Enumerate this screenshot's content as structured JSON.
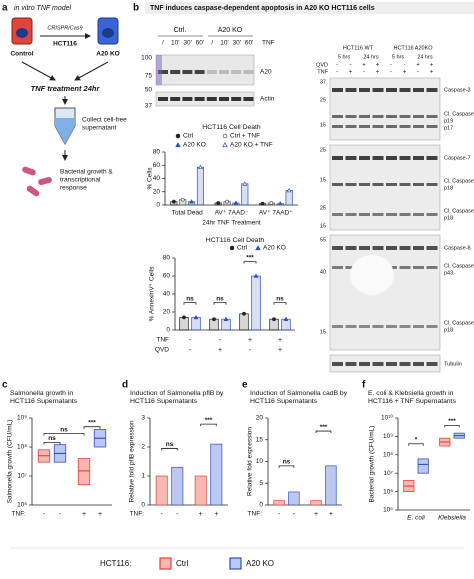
{
  "panel_a": {
    "label": "a",
    "title": "in vitro TNF model",
    "method": "CRISPR/Cas9",
    "cell_line": "HCT116",
    "control": "Control",
    "knockout": "A20 KO",
    "treatment": "TNF treatment 24hr",
    "step_1": [
      "Collect cell-free",
      "supernatant"
    ],
    "step_2": [
      "Bacterial growth &",
      "transcriptional",
      "response"
    ]
  },
  "panel_b": {
    "label": "b",
    "title": "TNF induces caspase-dependent apoptosis in A20 KO HCT116 cells",
    "blot_1": {
      "groups": [
        "Ctrl.",
        "A20 KO"
      ],
      "lanes": [
        "/",
        "10'",
        "30'",
        "60'",
        "/",
        "10'",
        "30'",
        "60'"
      ],
      "treatment": "TNF",
      "bands": [
        "A20",
        "Actin"
      ],
      "markers": [
        "100",
        "75",
        "50",
        "37"
      ]
    },
    "blot_2": {
      "groups": [
        "HCT116 WT",
        "HCT116 A20KO"
      ],
      "times": [
        "5 hrs",
        "24 hrs",
        "5 hrs",
        "24 hrs"
      ],
      "rows": [
        {
          "name": "QVD",
          "values": [
            "-",
            "-",
            "+",
            "+",
            "-",
            "-",
            "+",
            "+"
          ]
        },
        {
          "name": "TNF",
          "values": [
            "-",
            "+",
            "-",
            "+",
            "-",
            "+",
            "-",
            "+"
          ]
        }
      ],
      "bands": [
        [
          "Caspase-3"
        ],
        [
          "Cl. Caspase-3",
          "p19",
          "p17"
        ],
        [
          "Caspase-7"
        ],
        [
          "Cl. Caspase-7",
          "p18"
        ],
        [
          "Cl. Caspase-7",
          "p18"
        ],
        [
          "Caspase-8"
        ],
        [
          "Cl. Caspase-8",
          "p43"
        ],
        [
          "Cl. Caspase-8",
          "p18"
        ],
        [
          "Tubulin"
        ]
      ],
      "markers": [
        "37",
        "25",
        "15",
        "25",
        "15",
        "25",
        "15",
        "55",
        "40",
        "15"
      ]
    }
  },
  "charts": [
    {
      "type": "bar",
      "title": [
        "HCT116 Cell Death"
      ],
      "ylabel": "% Cells",
      "xlabel": "24hr TNF Treatment",
      "categories": [
        "Total Dead",
        "AV⁺ 7AAD⁻",
        "AV⁺ 7AAD⁺"
      ],
      "ylim": [
        0,
        80
      ],
      "yticks": [
        0,
        20,
        40,
        60,
        80
      ],
      "series": [
        {
          "name": "Ctrl",
          "color": "#222222",
          "marker": "circle",
          "open": false,
          "values": [
            5,
            3,
            2
          ]
        },
        {
          "name": "Ctrl + TNF",
          "color": "#555555",
          "marker": "circle",
          "open": true,
          "values": [
            8,
            5,
            3
          ]
        },
        {
          "name": "A20 KO",
          "color": "#2f4fbf",
          "marker": "triangle",
          "open": false,
          "values": [
            5,
            3,
            2
          ]
        },
        {
          "name": "A20 KO + TNF",
          "color": "#2f4fbf",
          "marker": "triangle",
          "open": true,
          "values": [
            57,
            32,
            22
          ]
        }
      ]
    },
    {
      "type": "bar",
      "title": [
        "HCT116 Cell Death"
      ],
      "ylabel": "% AnnexinV⁺ Cells",
      "rows": [
        {
          "name": "TNF",
          "values": [
            "-",
            "-",
            "+",
            "+"
          ]
        },
        {
          "name": "QVD",
          "values": [
            "-",
            "+",
            "-",
            "+"
          ]
        }
      ],
      "ylim": [
        0,
        80
      ],
      "yticks": [
        0,
        20,
        40,
        60,
        80
      ],
      "series": [
        {
          "name": "Ctrl",
          "color": "#222222",
          "marker": "circle",
          "open": false,
          "values": [
            14,
            12,
            18,
            12
          ]
        },
        {
          "name": "A20 KO",
          "color": "#2f4fbf",
          "marker": "triangle",
          "open": false,
          "values": [
            14,
            12,
            60,
            12
          ]
        }
      ],
      "annotations": [
        "ns",
        "ns",
        "***",
        "ns"
      ]
    },
    {
      "type": "box",
      "title": [
        "Salmonella growth in",
        "HCT116 Supernatants"
      ],
      "ylabel": "Salmonella growth (CFU/mL)",
      "log": true,
      "row_label": "TNF:",
      "categories": [
        "-",
        "+"
      ],
      "ylim": [
        1000000,
        1000000000
      ],
      "yticks": [
        {
          "value": 1000000,
          "label": "10⁶"
        },
        {
          "value": 10000000,
          "label": "10⁷"
        },
        {
          "value": 100000000,
          "label": "10⁸"
        },
        {
          "value": 1000000000,
          "label": "10⁹"
        }
      ],
      "series": [
        {
          "color": "#e0443a",
          "fill": "#f6b8b0",
          "q1": [
            30000000,
            5000000
          ],
          "median": [
            50000000,
            15000000
          ],
          "q3": [
            80000000,
            40000000
          ]
        },
        {
          "color": "#2f4fbf",
          "fill": "#bcc8f0",
          "q1": [
            30000000,
            100000000
          ],
          "median": [
            60000000,
            200000000
          ],
          "q3": [
            120000000,
            400000000
          ]
        }
      ],
      "annotations": [
        "ns",
        "ns",
        "***"
      ]
    },
    {
      "type": "bar",
      "title": [
        "Induction of Salmonella pflB by",
        "HCT116 Supernatants"
      ],
      "ylabel": "Relative fold pflB expression",
      "row_label": "TNF:",
      "categories": [
        "-",
        "+"
      ],
      "ylim": [
        0,
        3
      ],
      "yticks": [
        0,
        1,
        2,
        3
      ],
      "series": [
        {
          "color": "#e0443a",
          "fill": "#f6b8b0",
          "values": [
            1.0,
            1.0
          ]
        },
        {
          "color": "#2f4fbf",
          "fill": "#bcc8f0",
          "values": [
            1.3,
            2.1
          ]
        }
      ],
      "annotations": [
        "ns",
        "***"
      ]
    },
    {
      "type": "bar",
      "title": [
        "Induction of Salmonella cadB by",
        "HCT116 Supernatants"
      ],
      "ylabel": "Relative fold expression",
      "row_label": "TNF:",
      "categories": [
        "-",
        "+"
      ],
      "ylim": [
        0,
        20
      ],
      "yticks": [
        0,
        5,
        10,
        15,
        20
      ],
      "series": [
        {
          "color": "#e0443a",
          "fill": "#f6b8b0",
          "values": [
            1,
            1
          ]
        },
        {
          "color": "#2f4fbf",
          "fill": "#bcc8f0",
          "values": [
            3,
            9
          ]
        }
      ],
      "annotations": [
        "ns",
        "***"
      ]
    },
    {
      "type": "box",
      "title": [
        "E. coli & Klebsiella growth in",
        "HCT116 + TNF Supernatants"
      ],
      "ylabel": "Bacterial growth (CFU/mL)",
      "log": true,
      "categories": [
        "E. coli",
        "Klebsiella"
      ],
      "ylim": [
        100000,
        10000000000
      ],
      "yticks": [
        {
          "value": 100000,
          "label": "10⁵"
        },
        {
          "value": 1000000,
          "label": "10⁶"
        },
        {
          "value": 10000000,
          "label": "10⁷"
        },
        {
          "value": 100000000,
          "label": "10⁸"
        },
        {
          "value": 1000000000,
          "label": "10⁹"
        },
        {
          "value": 10000000000,
          "label": "10¹⁰"
        }
      ],
      "series": [
        {
          "color": "#e0443a",
          "fill": "#f6b8b0",
          "q1": [
            1000000,
            300000000
          ],
          "median": [
            2000000,
            500000000
          ],
          "q3": [
            4000000,
            800000000
          ]
        },
        {
          "color": "#2f4fbf",
          "fill": "#bcc8f0",
          "q1": [
            10000000,
            800000000
          ],
          "median": [
            30000000,
            1100000000
          ],
          "q3": [
            60000000,
            1500000000
          ]
        }
      ],
      "annotations": [
        "*",
        "***"
      ]
    }
  ],
  "panel_labels": [
    "c",
    "d",
    "e",
    "f"
  ],
  "legend": {
    "label": "HCT116:",
    "items": [
      {
        "name": "Ctrl",
        "color": "#e0443a",
        "fill": "#f6b8b0"
      },
      {
        "name": "A20 KO",
        "color": "#2f4fbf",
        "fill": "#bcc8f0"
      }
    ]
  }
}
